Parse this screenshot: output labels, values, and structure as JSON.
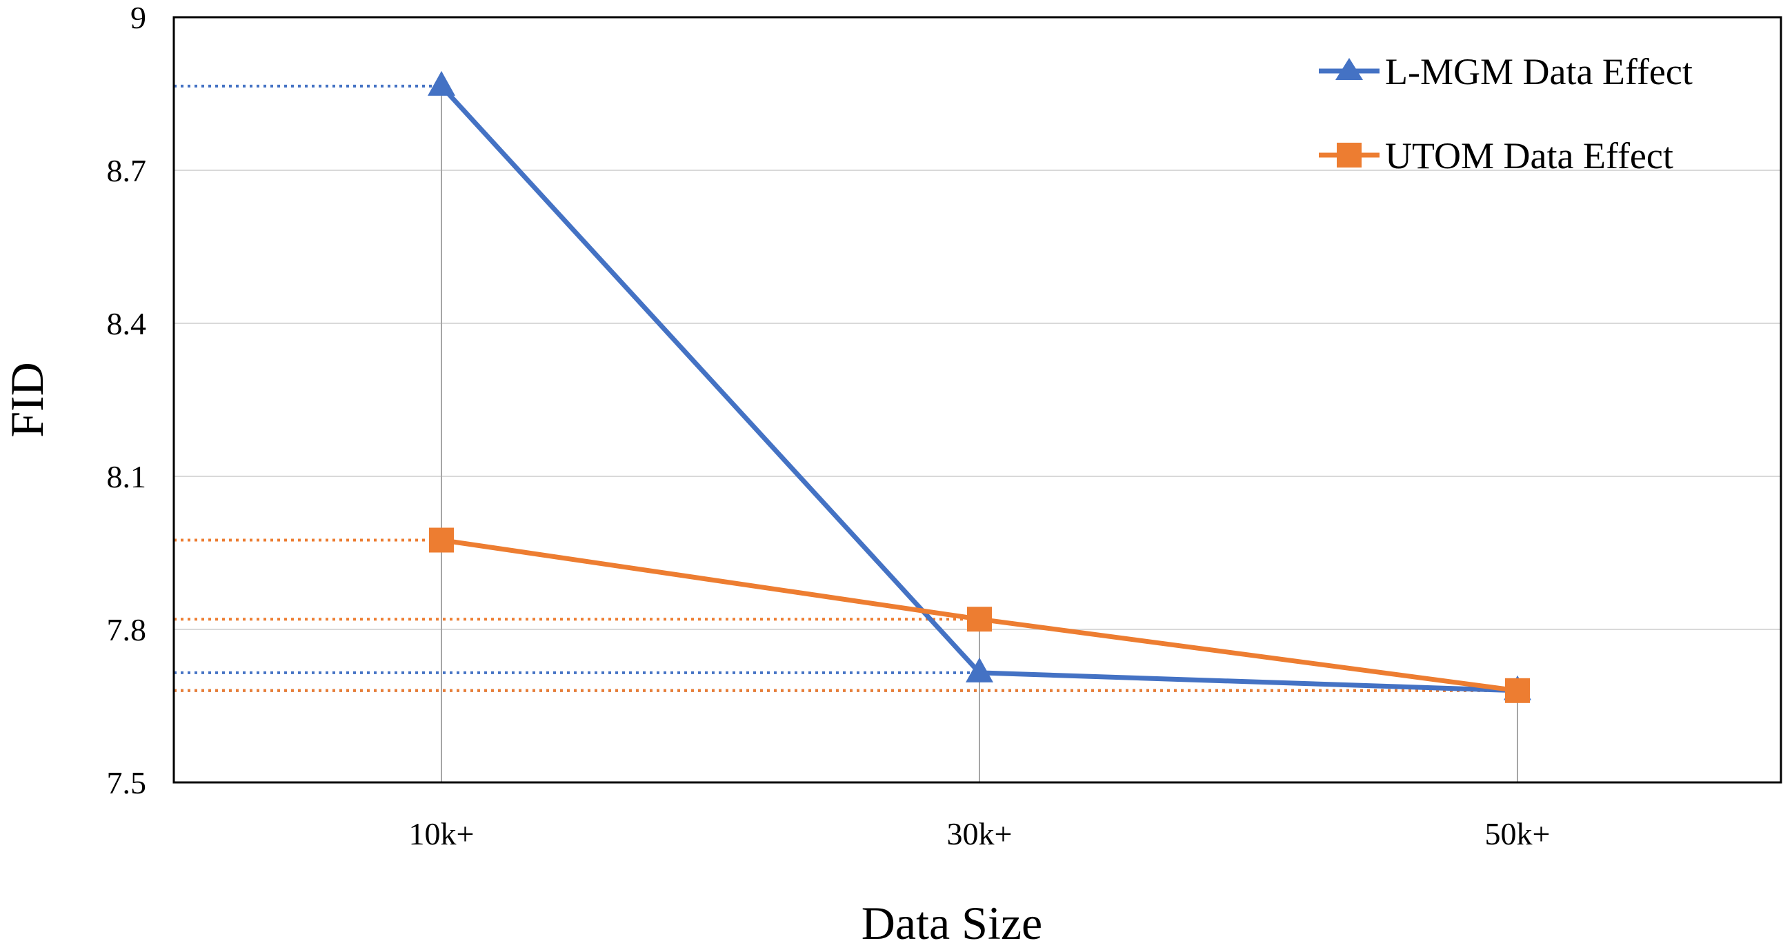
{
  "chart_data": {
    "type": "line",
    "title": "",
    "xlabel": "Data Size",
    "ylabel": "FID",
    "categories": [
      "10k+",
      "30k+",
      "50k+"
    ],
    "ylim": [
      7.5,
      9
    ],
    "yticks": [
      "7.5",
      "7.8",
      "8.1",
      "8.4",
      "8.7",
      "9"
    ],
    "ytick_values": [
      7.5,
      7.8,
      8.1,
      8.4,
      8.7,
      9.0
    ],
    "grid": true,
    "legend_position": "top-right",
    "series": [
      {
        "name": "L-MGM Data Effect",
        "values": [
          8.865,
          7.715,
          7.68
        ],
        "color": "#4472C4",
        "marker": "triangle"
      },
      {
        "name": "UTOM Data Effect",
        "values": [
          7.975,
          7.82,
          7.68
        ],
        "color": "#ED7D31",
        "marker": "square"
      }
    ],
    "reference_lines": [
      {
        "series": "L-MGM Data Effect",
        "values": [
          8.865,
          7.715,
          7.68
        ],
        "style": "dotted"
      },
      {
        "series": "UTOM Data Effect",
        "values": [
          7.975,
          7.82,
          7.68
        ],
        "style": "dotted"
      }
    ],
    "drop_lines": true,
    "colors": {
      "grid": "#D9D9D9",
      "frame": "#000000",
      "drop_line": "#A6A6A6"
    }
  }
}
